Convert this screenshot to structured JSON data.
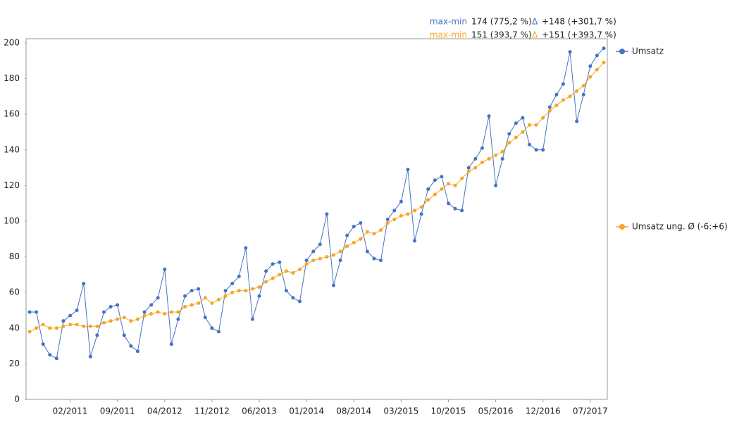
{
  "chart_data": {
    "type": "line",
    "categories": [
      null,
      null,
      null,
      null,
      null,
      null,
      "02/2011",
      null,
      null,
      null,
      null,
      null,
      null,
      "09/2011",
      null,
      null,
      null,
      null,
      null,
      null,
      "04/2012",
      null,
      null,
      null,
      null,
      null,
      null,
      "11/2012",
      null,
      null,
      null,
      null,
      null,
      null,
      "06/2013",
      null,
      null,
      null,
      null,
      null,
      null,
      "01/2014",
      null,
      null,
      null,
      null,
      null,
      null,
      "08/2014",
      null,
      null,
      null,
      null,
      null,
      null,
      "03/2015",
      null,
      null,
      null,
      null,
      null,
      null,
      "10/2015",
      null,
      null,
      null,
      null,
      null,
      null,
      "05/2016",
      null,
      null,
      null,
      null,
      null,
      null,
      "12/2016",
      null,
      null,
      null,
      null,
      null,
      null,
      "07/2017",
      null,
      null
    ],
    "series": [
      {
        "name": "Umsatz",
        "color": "#4472c4",
        "values": [
          49,
          49,
          31,
          25,
          23,
          44,
          47,
          50,
          65,
          24,
          36,
          49,
          52,
          53,
          36,
          30,
          27,
          49,
          53,
          57,
          73,
          31,
          45,
          58,
          61,
          62,
          46,
          40,
          38,
          61,
          65,
          69,
          85,
          45,
          58,
          72,
          76,
          77,
          61,
          57,
          55,
          78,
          83,
          87,
          104,
          64,
          78,
          92,
          97,
          99,
          83,
          79,
          78,
          101,
          106,
          111,
          129,
          89,
          104,
          118,
          123,
          125,
          110,
          107,
          106,
          130,
          135,
          141,
          159,
          120,
          135,
          149,
          155,
          158,
          143,
          140,
          140,
          164,
          171,
          177,
          195,
          156,
          171,
          187,
          193,
          197
        ]
      },
      {
        "name": "Umsatz ung. Ø (-6:+6)",
        "color": "#f5a623",
        "values": [
          38,
          40,
          42,
          40,
          40,
          41,
          42,
          42,
          41,
          41,
          41,
          43,
          44,
          45,
          46,
          44,
          45,
          47,
          48,
          49,
          48,
          49,
          49,
          52,
          53,
          54,
          57,
          54,
          56,
          58,
          60,
          61,
          61,
          62,
          63,
          66,
          68,
          70,
          72,
          71,
          73,
          76,
          78,
          79,
          80,
          81,
          83,
          86,
          88,
          90,
          94,
          93,
          95,
          99,
          101,
          103,
          104,
          106,
          108,
          112,
          115,
          118,
          121,
          120,
          124,
          128,
          130,
          133,
          135,
          137,
          139,
          144,
          147,
          150,
          154,
          154,
          158,
          162,
          165,
          168,
          170,
          173,
          176,
          181,
          185,
          189
        ]
      }
    ],
    "annotations": [
      {
        "label": "max-min",
        "text": "174 (775,2 %)",
        "delta": "Δ",
        "delta_text": "+148 (+301,7 %)"
      },
      {
        "label": "max-min",
        "text": "151 (393,7 %)",
        "delta": "Δ",
        "delta_text": "+151 (+393,7 %)"
      }
    ],
    "ylim": [
      0,
      200
    ],
    "yticks": [
      0,
      20,
      40,
      60,
      80,
      100,
      120,
      140,
      160,
      180,
      200
    ],
    "grid": false,
    "legend": "right"
  }
}
